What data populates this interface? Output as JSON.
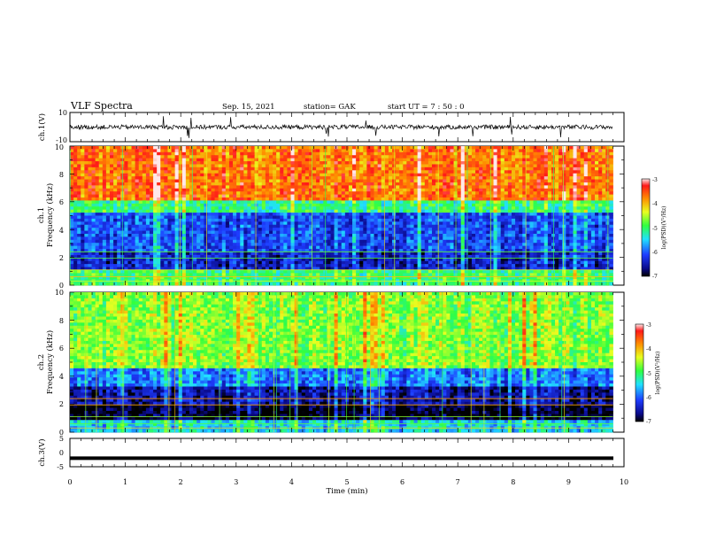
{
  "header": {
    "title": "VLF Spectra",
    "date": "Sep. 15, 2021",
    "station": "station= GAK",
    "start": "start  UT =   7 : 50 : 0"
  },
  "chart_data": [
    {
      "type": "line",
      "panel": "ch1-waveform",
      "ylabel": "ch.1(V)",
      "ylim": [
        -10,
        10
      ],
      "yticks": [
        "10",
        "-10"
      ],
      "xlim": [
        0,
        10
      ],
      "baseline": 0,
      "approx_amplitude": 1.5,
      "spike_amplitude": 8
    },
    {
      "type": "heatmap",
      "panel": "ch1-spectrogram",
      "ylabel": "ch.1\nFrequency (kHz)",
      "ylim": [
        0,
        10
      ],
      "yticks": [
        "0",
        "2",
        "4",
        "6",
        "8",
        "10"
      ],
      "xlim": [
        0,
        9.8
      ],
      "colorbar": {
        "label": "log(PSD)(V²/Hz)",
        "range": [
          -7,
          -3
        ],
        "ticks": [
          "-3",
          "-4",
          "-5",
          "-6",
          "-7"
        ]
      },
      "bands_khz": [
        {
          "from": 0,
          "to": 1,
          "level": -5
        },
        {
          "from": 1,
          "to": 2.5,
          "level": -6.4
        },
        {
          "from": 2.5,
          "to": 5.2,
          "level": -6.1
        },
        {
          "from": 5.2,
          "to": 6,
          "level": -5.1
        },
        {
          "from": 6,
          "to": 10,
          "level": -3.7
        }
      ]
    },
    {
      "type": "heatmap",
      "panel": "ch2-spectrogram",
      "ylabel": "ch.2\nFrequency (kHz)",
      "ylim": [
        0,
        10
      ],
      "yticks": [
        "0",
        "2",
        "4",
        "6",
        "8",
        "10"
      ],
      "xlim": [
        0,
        9.8
      ],
      "colorbar": {
        "label": "log(PSD)(V²/Hz)",
        "range": [
          -7,
          -3
        ],
        "ticks": [
          "-3",
          "-4",
          "-5",
          "-6",
          "-7"
        ]
      },
      "bands_khz": [
        {
          "from": 0,
          "to": 0.8,
          "level": -5.5
        },
        {
          "from": 0.8,
          "to": 1.9,
          "level": -7
        },
        {
          "from": 1.9,
          "to": 3.2,
          "level": -6.6
        },
        {
          "from": 3.2,
          "to": 4.6,
          "level": -5.9
        },
        {
          "from": 4.6,
          "to": 10,
          "level": -4.7
        }
      ]
    },
    {
      "type": "line",
      "panel": "ch3-waveform",
      "ylabel": "ch.3(V)",
      "ylim": [
        -5,
        5
      ],
      "yticks": [
        "5",
        "0",
        "-5"
      ],
      "xlim": [
        0,
        10
      ],
      "value": -2,
      "xlabel": "Time  (min)",
      "xticks": [
        "0",
        "1",
        "2",
        "3",
        "4",
        "5",
        "6",
        "7",
        "8",
        "9",
        "10"
      ]
    }
  ]
}
